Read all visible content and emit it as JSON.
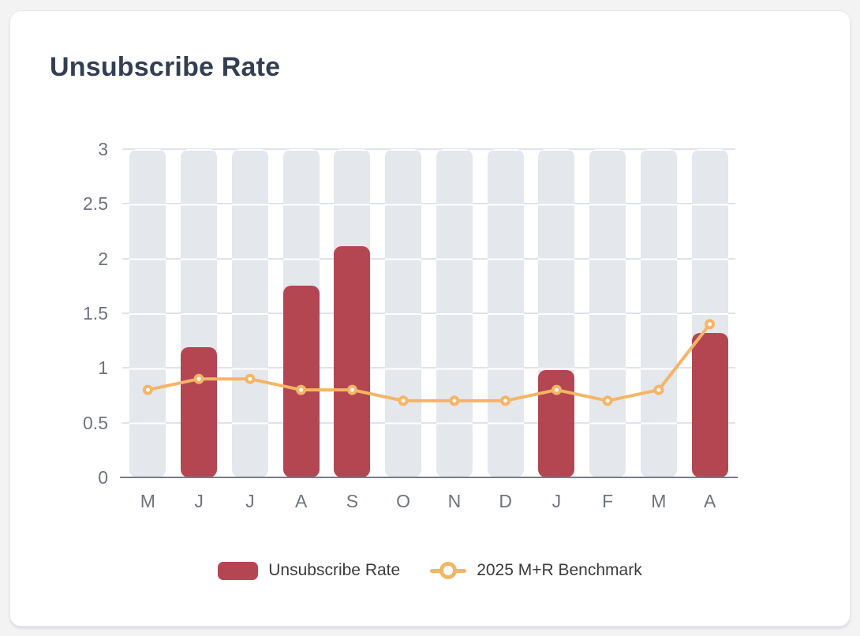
{
  "card": {
    "title": "Unsubscribe Rate"
  },
  "colors": {
    "bar": "#b44652",
    "line": "#f5b566",
    "marker_fill": "#ffffff",
    "band": "#e4e7ec",
    "gridline": "#dfe3ee",
    "axis_line": "#767c86",
    "tick_label": "#6e737d",
    "title_text": "#333e52",
    "legend_text": "#3b3b3b",
    "card_background": "#ffffff",
    "page_background": "#f3f3f4"
  },
  "chart_data": {
    "type": "bar",
    "title": "Unsubscribe Rate",
    "categories": [
      "M",
      "J",
      "J",
      "A",
      "S",
      "O",
      "N",
      "D",
      "J",
      "F",
      "M",
      "A"
    ],
    "series": [
      {
        "name": "Unsubscribe Rate",
        "type": "bar",
        "values": [
          null,
          1.19,
          null,
          1.75,
          2.11,
          null,
          null,
          null,
          0.98,
          null,
          null,
          1.32
        ]
      },
      {
        "name": "2025 M+R Benchmark",
        "type": "line",
        "values": [
          0.8,
          0.9,
          0.9,
          0.8,
          0.8,
          0.7,
          0.7,
          0.7,
          0.8,
          0.7,
          0.8,
          1.4
        ]
      }
    ],
    "xlabel": "",
    "ylabel": "",
    "ylim": [
      0,
      3
    ],
    "yticks": [
      0,
      0.5,
      1,
      1.5,
      2,
      2.5,
      3
    ],
    "ytick_labels": [
      "0",
      "0.5",
      "1",
      "1.5",
      "2",
      "2.5",
      "3"
    ],
    "grid": true,
    "column_backgrounds": true,
    "legend_position": "bottom"
  },
  "legend": {
    "items": [
      {
        "label": "Unsubscribe Rate",
        "marker": "bar-swatch"
      },
      {
        "label": "2025 M+R Benchmark",
        "marker": "line-with-ring"
      }
    ]
  }
}
